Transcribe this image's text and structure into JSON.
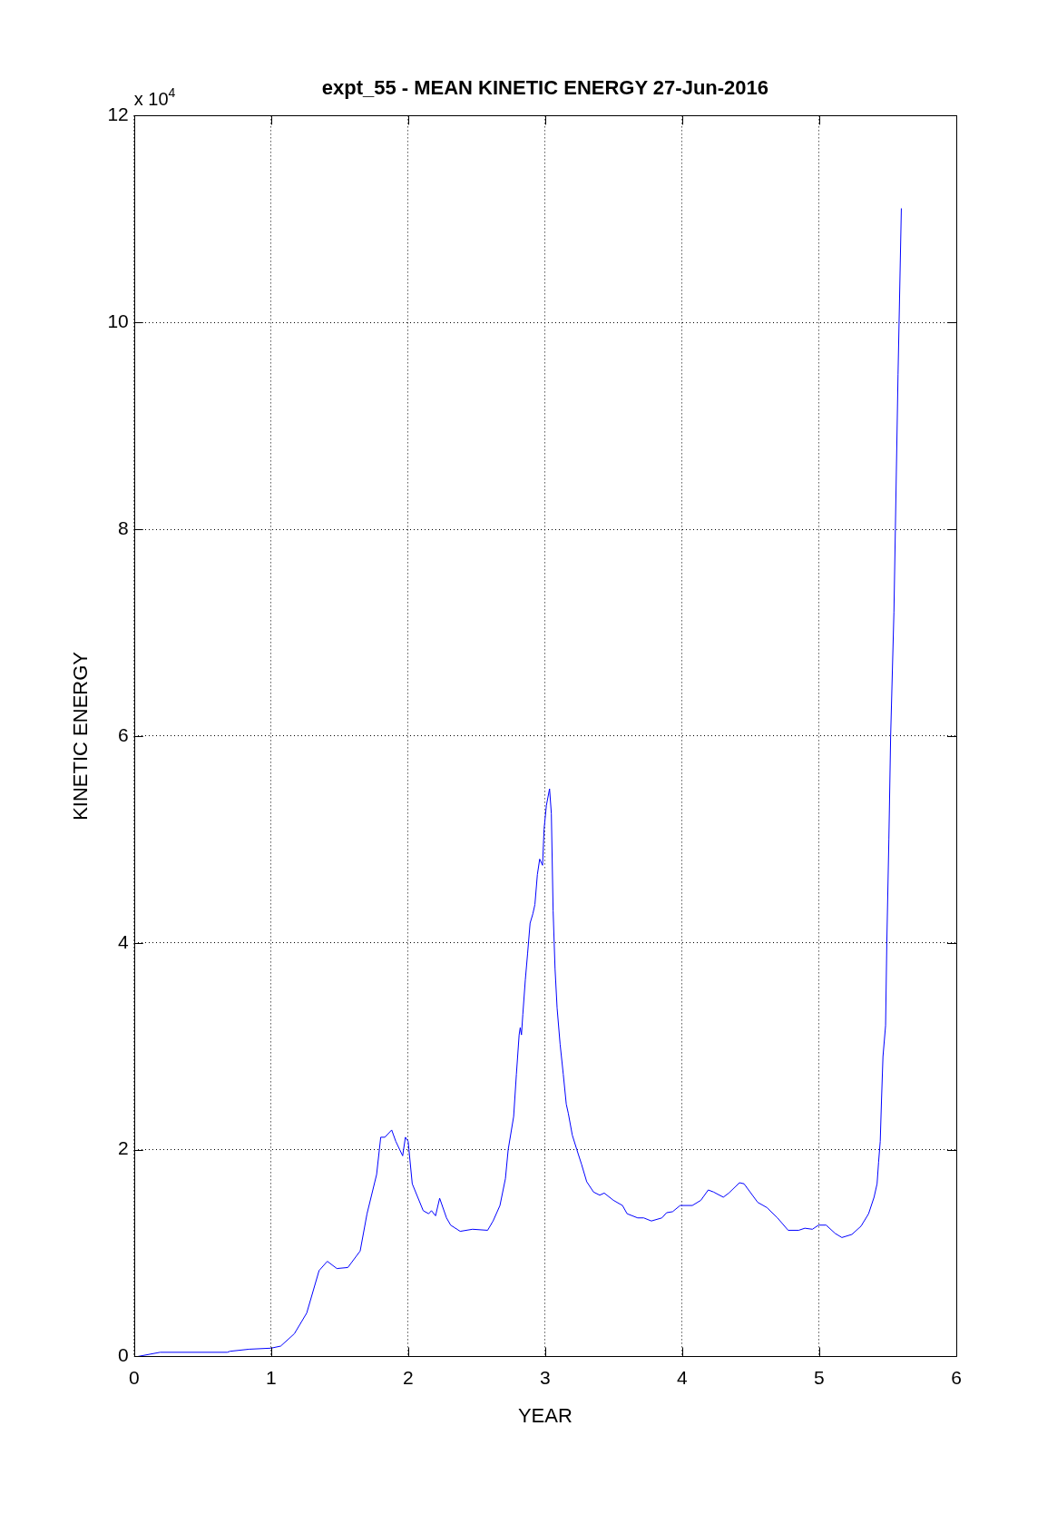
{
  "chart_data": {
    "type": "line",
    "title": "expt_55 - MEAN KINETIC ENERGY 27-Jun-2016",
    "xlabel": "YEAR",
    "ylabel": "KINETIC ENERGY",
    "annotations": [
      "x 10$^{4}$"
    ],
    "x": [
      0.03,
      0.19,
      0.68,
      0.7,
      0.84,
      1.0,
      1.07,
      1.17,
      1.26,
      1.35,
      1.41,
      1.48,
      1.56,
      1.65,
      1.7,
      1.77,
      1.8,
      1.83,
      1.88,
      1.91,
      1.96,
      1.98,
      2.0,
      2.03,
      2.11,
      2.15,
      2.17,
      2.2,
      2.23,
      2.28,
      2.31,
      2.38,
      2.47,
      2.58,
      2.62,
      2.67,
      2.71,
      2.73,
      2.77,
      2.79,
      2.81,
      2.818,
      2.827,
      2.837,
      2.855,
      2.872,
      2.89,
      2.91,
      2.925,
      2.943,
      2.96,
      2.981,
      2.992,
      3.009,
      3.032,
      3.045,
      3.058,
      3.072,
      3.087,
      3.109,
      3.132,
      3.154,
      3.169,
      3.198,
      3.231,
      3.265,
      3.303,
      3.353,
      3.398,
      3.431,
      3.498,
      3.564,
      3.598,
      3.675,
      3.719,
      3.775,
      3.852,
      3.886,
      3.93,
      3.985,
      4.074,
      4.136,
      4.19,
      4.229,
      4.3,
      4.34,
      4.418,
      4.451,
      4.551,
      4.618,
      4.695,
      4.773,
      4.85,
      4.895,
      4.95,
      4.995,
      5.05,
      5.116,
      5.165,
      5.238,
      5.305,
      5.36,
      5.4,
      5.422,
      5.433,
      5.445,
      5.454,
      5.465,
      5.484,
      5.493,
      5.508,
      5.521,
      5.545,
      5.575,
      5.599
    ],
    "values": [
      0,
      0.04,
      0.04,
      0.05,
      0.07,
      0.08,
      0.1,
      0.22,
      0.42,
      0.83,
      0.92,
      0.85,
      0.86,
      1.02,
      1.38,
      1.76,
      2.12,
      2.12,
      2.19,
      2.08,
      1.94,
      2.12,
      2.08,
      1.67,
      1.41,
      1.38,
      1.41,
      1.36,
      1.53,
      1.34,
      1.27,
      1.21,
      1.23,
      1.22,
      1.31,
      1.46,
      1.72,
      2.0,
      2.32,
      2.73,
      3.11,
      3.18,
      3.11,
      3.31,
      3.64,
      3.9,
      4.19,
      4.28,
      4.37,
      4.66,
      4.81,
      4.75,
      5.1,
      5.33,
      5.49,
      5.25,
      4.31,
      3.75,
      3.37,
      3.02,
      2.73,
      2.44,
      2.35,
      2.14,
      2.0,
      1.86,
      1.69,
      1.59,
      1.56,
      1.58,
      1.51,
      1.46,
      1.38,
      1.34,
      1.34,
      1.31,
      1.34,
      1.39,
      1.4,
      1.46,
      1.46,
      1.51,
      1.61,
      1.59,
      1.54,
      1.58,
      1.68,
      1.67,
      1.49,
      1.44,
      1.34,
      1.22,
      1.22,
      1.24,
      1.23,
      1.27,
      1.27,
      1.19,
      1.15,
      1.18,
      1.26,
      1.38,
      1.54,
      1.67,
      1.88,
      2.08,
      2.47,
      2.9,
      3.2,
      4.0,
      5.0,
      6.0,
      7.2,
      9.5,
      11.1
    ],
    "color": "#0000ff",
    "xlim": [
      0,
      6
    ],
    "xticks": [
      0,
      1,
      2,
      3,
      4,
      5,
      6
    ],
    "ylim": [
      0,
      12
    ],
    "yticks": [
      0,
      2,
      4,
      6,
      8,
      10,
      12
    ],
    "grid": true,
    "legend": false,
    "marker": "none",
    "line_style": "solid"
  }
}
